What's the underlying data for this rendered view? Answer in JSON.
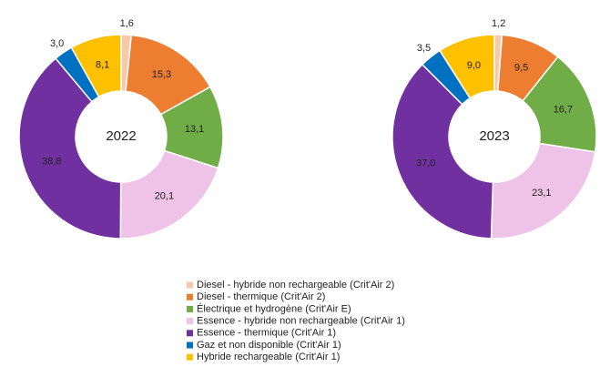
{
  "chart_data": {
    "type": "donut",
    "categories": [
      "Diesel - hybride non rechargeable (Crit'Air 2)",
      "Diesel - thermique (Crit'Air 2)",
      "Électrique et hydrogène (Crit'Air E)",
      "Essence - hybride non rechargeable (Crit'Air 1)",
      "Essence - thermique (Crit'Air 1)",
      "Gaz et non disponible (Crit'Air 1)",
      "Hybride rechargeable (Crit'Air 1)"
    ],
    "colors": [
      "#f8c9a8",
      "#ed7d31",
      "#70ad47",
      "#efc3e8",
      "#7030a0",
      "#0070c0",
      "#ffc000"
    ],
    "series": [
      {
        "name": "2022",
        "values": [
          1.6,
          15.3,
          13.1,
          20.1,
          38.8,
          3.0,
          8.1
        ],
        "value_labels": [
          "1,6",
          "15,3",
          "13,1",
          "20,1",
          "38,8",
          "3,0",
          "8,1"
        ]
      },
      {
        "name": "2023",
        "values": [
          1.2,
          9.5,
          16.7,
          23.1,
          37.0,
          3.5,
          9.0
        ],
        "value_labels": [
          "1,2",
          "9,5",
          "16,7",
          "23,1",
          "37,0",
          "3,5",
          "9,0"
        ]
      }
    ]
  }
}
